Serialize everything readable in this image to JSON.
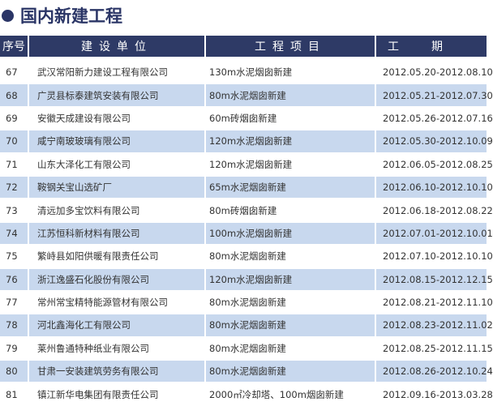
{
  "title": "国内新建工程",
  "columns": [
    "序号",
    "建设单位",
    "工程项目",
    "工期"
  ],
  "rows": [
    {
      "no": "67",
      "unit": "武汉常阳新力建设工程有限公司",
      "project": "130m水泥烟囱新建",
      "period": "2012.05.20-2012.08.10"
    },
    {
      "no": "68",
      "unit": "广灵县标泰建筑安装有限公司",
      "project": "80m水泥烟囱新建",
      "period": "2012.05.21-2012.07.30"
    },
    {
      "no": "69",
      "unit": "安徽天成建设有限公司",
      "project": "60m砖烟囱新建",
      "period": "2012.05.26-2012.07.16"
    },
    {
      "no": "70",
      "unit": "咸宁南玻玻璃有限公司",
      "project": "120m水泥烟囱新建",
      "period": "2012.05.30-2012.10.09"
    },
    {
      "no": "71",
      "unit": "山东大泽化工有限公司",
      "project": "120m水泥烟囱新建",
      "period": "2012.06.05-2012.08.25"
    },
    {
      "no": "72",
      "unit": "鞍钢关宝山选矿厂",
      "project": "65m水泥烟囱新建",
      "period": "2012.06.10-2012.10.10"
    },
    {
      "no": "73",
      "unit": "清远加多宝饮料有限公司",
      "project": "80m砖烟囱新建",
      "period": "2012.06.18-2012.08.22"
    },
    {
      "no": "74",
      "unit": "江苏恒科新材料有限公司",
      "project": "100m水泥烟囱新建",
      "period": "2012.07.01-2012.10.01"
    },
    {
      "no": "75",
      "unit": "繁峙县如阳供暖有限责任公司",
      "project": "80m水泥烟囱新建",
      "period": "2012.07.10-2012.10.10"
    },
    {
      "no": "76",
      "unit": "浙江逸盛石化股份有限公司",
      "project": "120m水泥烟囱新建",
      "period": "2012.08.15-2012.12.15"
    },
    {
      "no": "77",
      "unit": "常州常宝精特能源管材有限公司",
      "project": "80m水泥烟囱新建",
      "period": "2012.08.21-2012.11.10"
    },
    {
      "no": "78",
      "unit": "河北鑫海化工有限公司",
      "project": "80m水泥烟囱新建",
      "period": "2012.08.23-2012.11.02"
    },
    {
      "no": "79",
      "unit": "莱州鲁通特种纸业有限公司",
      "project": "80m水泥烟囱新建",
      "period": "2012.08.25-2012.11.15"
    },
    {
      "no": "80",
      "unit": "甘肃一安装建筑劳务有限公司",
      "project": "80m水泥烟囱新建",
      "period": "2012.08.26-2012.10.24"
    },
    {
      "no": "81",
      "unit": "镇江新华电集团有限责任公司",
      "project": "2000㎡冷却塔、100m烟囱新建",
      "period": "2012.09.16-2013.03.28"
    }
  ],
  "colors": {
    "header": "#2e3a66",
    "alt_row": "#c8d8ee"
  }
}
